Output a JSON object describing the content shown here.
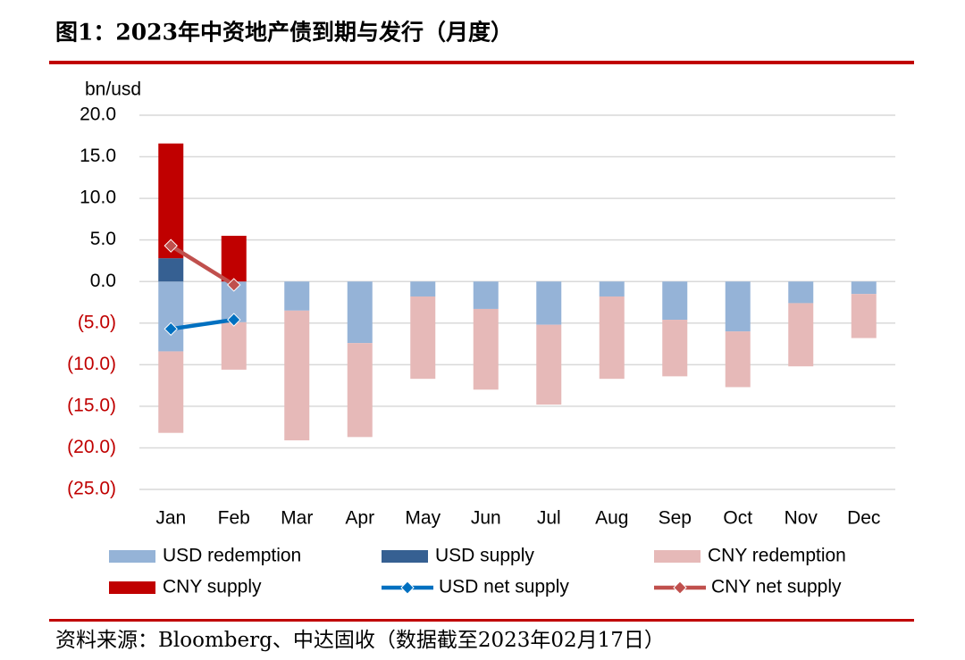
{
  "chart_data": {
    "type": "bar",
    "title": "图1：2023年中资地产债到期与发行（月度）",
    "source": "资料来源：Bloomberg、中达固收（数据截至2023年02月17日）",
    "ylabel": "bn/usd",
    "categories": [
      "Jan",
      "Feb",
      "Mar",
      "Apr",
      "May",
      "Jun",
      "Jul",
      "Aug",
      "Sep",
      "Oct",
      "Nov",
      "Dec"
    ],
    "ylim": [
      -25,
      20
    ],
    "yticks": [
      {
        "value": -25,
        "label": "(25.0)"
      },
      {
        "value": -20,
        "label": "(20.0)"
      },
      {
        "value": -15,
        "label": "(15.0)"
      },
      {
        "value": -10,
        "label": "(10.0)"
      },
      {
        "value": -5,
        "label": "(5.0)"
      },
      {
        "value": 0,
        "label": "0.0"
      },
      {
        "value": 5,
        "label": "5.0"
      },
      {
        "value": 10,
        "label": "10.0"
      },
      {
        "value": 15,
        "label": "15.0"
      },
      {
        "value": 20,
        "label": "20.0"
      }
    ],
    "negative_tick_color": "#c00000",
    "grid": true,
    "series": [
      {
        "name": "USD redemption",
        "type": "bar",
        "color": "#95b3d7",
        "values": [
          -8.4,
          -4.9,
          -3.5,
          -7.4,
          -1.8,
          -3.3,
          -5.2,
          -1.8,
          -4.6,
          -6.0,
          -2.6,
          -1.5
        ]
      },
      {
        "name": "USD supply",
        "type": "bar",
        "color": "#366092",
        "values": [
          2.8,
          0,
          0,
          0,
          0,
          0,
          0,
          0,
          0,
          0,
          0,
          0
        ]
      },
      {
        "name": "CNY redemption",
        "type": "bar",
        "color": "#e6b9b8",
        "values": [
          -9.8,
          -5.7,
          -15.6,
          -11.3,
          -9.9,
          -9.7,
          -9.6,
          -9.9,
          -6.8,
          -6.7,
          -7.6,
          -5.3
        ]
      },
      {
        "name": "CNY supply",
        "type": "bar",
        "color": "#c00000",
        "values": [
          13.8,
          5.5,
          0,
          0,
          0,
          0,
          0,
          0,
          0,
          0,
          0,
          0
        ]
      },
      {
        "name": "USD net supply",
        "type": "line",
        "color": "#0070c0",
        "values": [
          -5.7,
          -4.6,
          null,
          null,
          null,
          null,
          null,
          null,
          null,
          null,
          null,
          null
        ]
      },
      {
        "name": "CNY net supply",
        "type": "line",
        "color": "#c0504d",
        "values": [
          4.3,
          -0.4,
          null,
          null,
          null,
          null,
          null,
          null,
          null,
          null,
          null,
          null
        ]
      }
    ]
  }
}
